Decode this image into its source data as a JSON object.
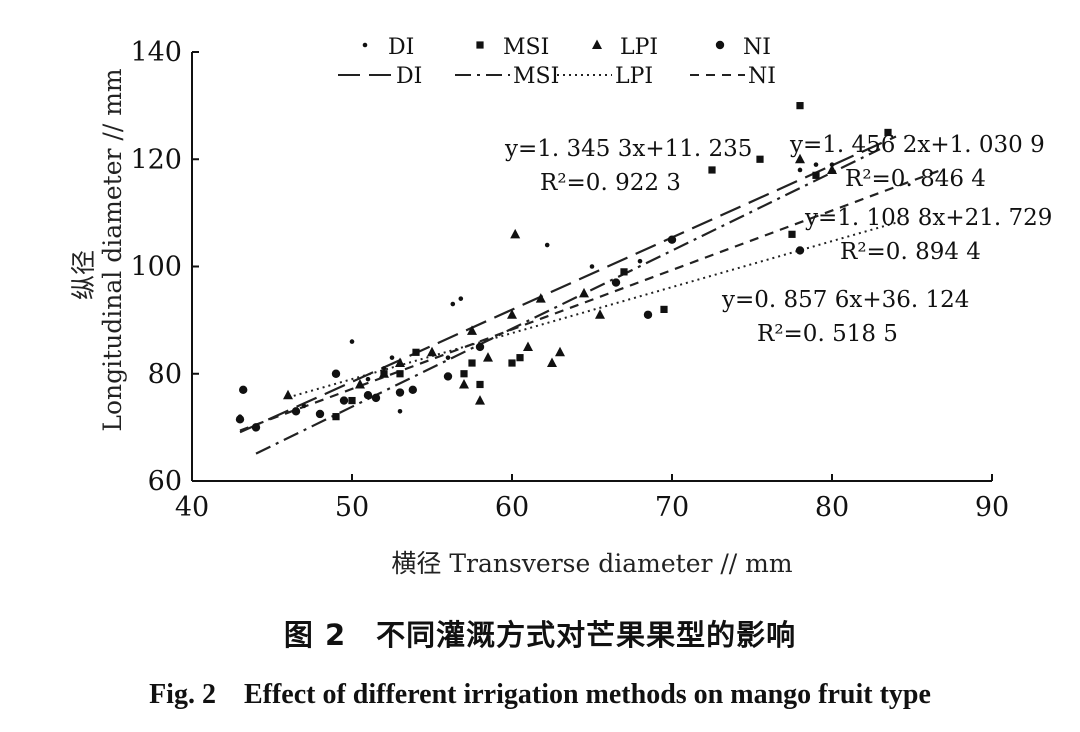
{
  "figure": {
    "caption_cn": "图 2　不同灌溉方式对芒果果型的影响",
    "caption_en": "Fig. 2　Effect of different irrigation methods on mango fruit type"
  },
  "chart_data": {
    "type": "scatter",
    "title": "",
    "xlabel": "横径 Transverse diameter // mm",
    "ylabel_cn": "纵径",
    "ylabel": "Longitudinal diameter // mm",
    "xlim": [
      40,
      90
    ],
    "ylim": [
      60,
      140
    ],
    "x_ticks": [
      40,
      50,
      60,
      70,
      80,
      90
    ],
    "y_ticks": [
      60,
      80,
      100,
      120,
      140
    ],
    "legend_position": "top",
    "series": [
      {
        "name": "DI",
        "marker": "small-dot",
        "fit": {
          "slope": 1.3453,
          "intercept": 11.235,
          "line_label": "DI",
          "style": "long-dash"
        },
        "equation": "y=1. 345 3x+11. 235",
        "r2": "R²=0. 922 3",
        "points": [
          [
            43,
            72
          ],
          [
            47,
            74
          ],
          [
            50,
            86
          ],
          [
            51,
            79
          ],
          [
            52,
            81
          ],
          [
            52.5,
            83
          ],
          [
            53,
            73
          ],
          [
            56,
            83
          ],
          [
            56.3,
            93
          ],
          [
            56.8,
            94
          ],
          [
            60,
            91
          ],
          [
            62.2,
            104
          ],
          [
            65,
            100
          ],
          [
            68,
            101
          ],
          [
            78,
            118
          ],
          [
            79,
            119
          ],
          [
            80,
            119
          ]
        ]
      },
      {
        "name": "MSI",
        "marker": "small-square",
        "fit": {
          "slope": 1.4562,
          "intercept": 1.0309,
          "line_label": "MSI",
          "style": "dash-dot"
        },
        "equation": "y=1. 456 2x+1. 030 9",
        "r2": "R²=0. 846 4",
        "points": [
          [
            49,
            72
          ],
          [
            50,
            75
          ],
          [
            52,
            80
          ],
          [
            53,
            80
          ],
          [
            54,
            84
          ],
          [
            57,
            80
          ],
          [
            57.5,
            82
          ],
          [
            58,
            78
          ],
          [
            60,
            82
          ],
          [
            60.5,
            83
          ],
          [
            67,
            99
          ],
          [
            69.5,
            92
          ],
          [
            72.5,
            118
          ],
          [
            75.5,
            120
          ],
          [
            77.5,
            106
          ],
          [
            78,
            130
          ],
          [
            79,
            117
          ],
          [
            83.5,
            125
          ]
        ]
      },
      {
        "name": "LPI",
        "marker": "triangle",
        "fit": {
          "slope": 0.8576,
          "intercept": 36.124,
          "line_label": "LPI",
          "style": "dotted"
        },
        "equation": "y=0. 857 6x+36. 124",
        "r2": "R²=0. 518 5",
        "points": [
          [
            46,
            76
          ],
          [
            50.5,
            78
          ],
          [
            52,
            80
          ],
          [
            53,
            82
          ],
          [
            55,
            84
          ],
          [
            57,
            78
          ],
          [
            57.5,
            88
          ],
          [
            58,
            75
          ],
          [
            58.5,
            83
          ],
          [
            60,
            91
          ],
          [
            60.2,
            106
          ],
          [
            61,
            85
          ],
          [
            61.8,
            94
          ],
          [
            62.5,
            82
          ],
          [
            63,
            84
          ],
          [
            64.5,
            95
          ],
          [
            65.5,
            91
          ],
          [
            78,
            120
          ],
          [
            80,
            118
          ]
        ]
      },
      {
        "name": "NI",
        "marker": "dot",
        "fit": {
          "slope": 1.1088,
          "intercept": 21.729,
          "line_label": "NI",
          "style": "short-dash"
        },
        "equation": "y=1. 108 8x+21. 729",
        "r2": "R²=0. 894 4",
        "points": [
          [
            43,
            71.5
          ],
          [
            43.2,
            77
          ],
          [
            44,
            70
          ],
          [
            46.5,
            73
          ],
          [
            48,
            72.5
          ],
          [
            49,
            80
          ],
          [
            49.5,
            75
          ],
          [
            51,
            76
          ],
          [
            51.5,
            75.5
          ],
          [
            53,
            76.5
          ],
          [
            53.8,
            77
          ],
          [
            56,
            79.5
          ],
          [
            58,
            85
          ],
          [
            66.5,
            97
          ],
          [
            68.5,
            91
          ],
          [
            70,
            105
          ],
          [
            78,
            103
          ]
        ]
      }
    ]
  }
}
